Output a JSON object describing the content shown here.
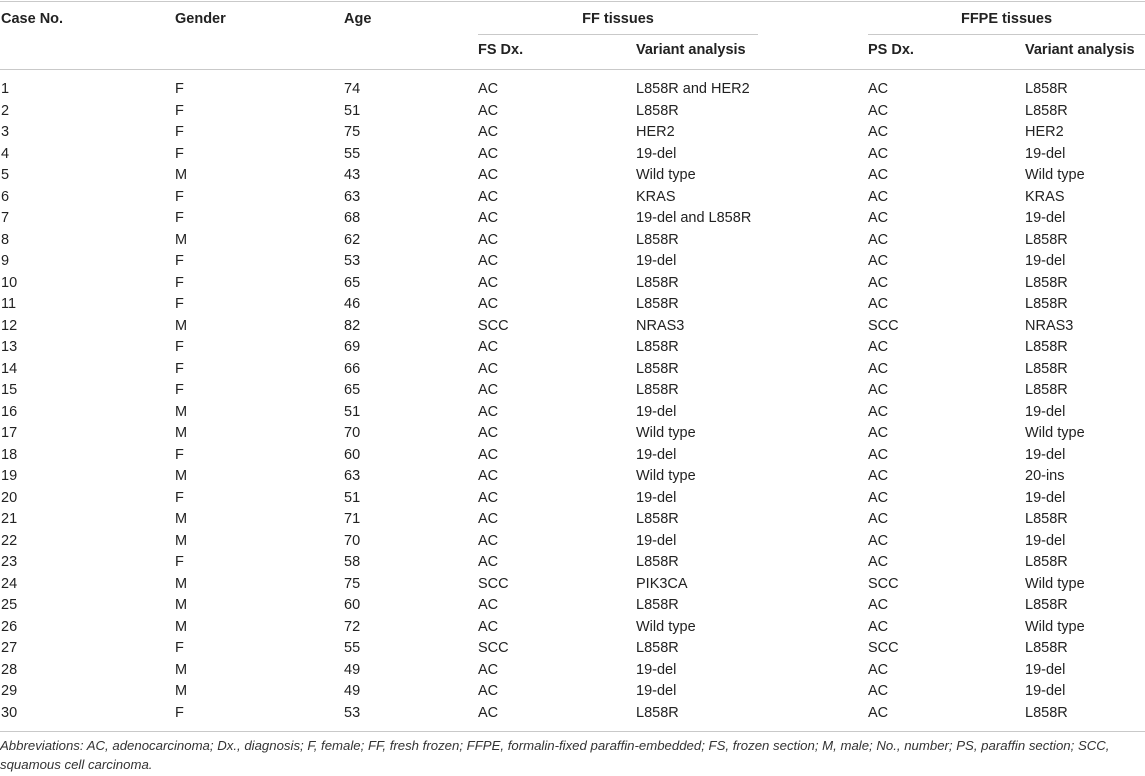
{
  "table": {
    "headers": {
      "case_no": "Case No.",
      "gender": "Gender",
      "age": "Age",
      "ff_group": "FF tissues",
      "ffpe_group": "FFPE tissues",
      "fs_dx": "FS Dx.",
      "ff_variant": "Variant analysis",
      "ps_dx": "PS Dx.",
      "ffpe_variant": "Variant analysis"
    },
    "rows": [
      [
        "1",
        "F",
        "74",
        "AC",
        "L858R and HER2",
        "AC",
        "L858R"
      ],
      [
        "2",
        "F",
        "51",
        "AC",
        "L858R",
        "AC",
        "L858R"
      ],
      [
        "3",
        "F",
        "75",
        "AC",
        "HER2",
        "AC",
        "HER2"
      ],
      [
        "4",
        "F",
        "55",
        "AC",
        "19-del",
        "AC",
        "19-del"
      ],
      [
        "5",
        "M",
        "43",
        "AC",
        "Wild type",
        "AC",
        "Wild type"
      ],
      [
        "6",
        "F",
        "63",
        "AC",
        "KRAS",
        "AC",
        "KRAS"
      ],
      [
        "7",
        "F",
        "68",
        "AC",
        "19-del and L858R",
        "AC",
        "19-del"
      ],
      [
        "8",
        "M",
        "62",
        "AC",
        "L858R",
        "AC",
        "L858R"
      ],
      [
        "9",
        "F",
        "53",
        "AC",
        "19-del",
        "AC",
        "19-del"
      ],
      [
        "10",
        "F",
        "65",
        "AC",
        "L858R",
        "AC",
        "L858R"
      ],
      [
        "11",
        "F",
        "46",
        "AC",
        "L858R",
        "AC",
        "L858R"
      ],
      [
        "12",
        "M",
        "82",
        "SCC",
        "NRAS3",
        "SCC",
        "NRAS3"
      ],
      [
        "13",
        "F",
        "69",
        "AC",
        "L858R",
        "AC",
        "L858R"
      ],
      [
        "14",
        "F",
        "66",
        "AC",
        "L858R",
        "AC",
        "L858R"
      ],
      [
        "15",
        "F",
        "65",
        "AC",
        "L858R",
        "AC",
        "L858R"
      ],
      [
        "16",
        "M",
        "51",
        "AC",
        "19-del",
        "AC",
        "19-del"
      ],
      [
        "17",
        "M",
        "70",
        "AC",
        "Wild type",
        "AC",
        "Wild type"
      ],
      [
        "18",
        "F",
        "60",
        "AC",
        "19-del",
        "AC",
        "19-del"
      ],
      [
        "19",
        "M",
        "63",
        "AC",
        "Wild type",
        "AC",
        "20-ins"
      ],
      [
        "20",
        "F",
        "51",
        "AC",
        "19-del",
        "AC",
        "19-del"
      ],
      [
        "21",
        "M",
        "71",
        "AC",
        "L858R",
        "AC",
        "L858R"
      ],
      [
        "22",
        "M",
        "70",
        "AC",
        "19-del",
        "AC",
        "19-del"
      ],
      [
        "23",
        "F",
        "58",
        "AC",
        "L858R",
        "AC",
        "L858R"
      ],
      [
        "24",
        "M",
        "75",
        "SCC",
        "PIK3CA",
        "SCC",
        "Wild type"
      ],
      [
        "25",
        "M",
        "60",
        "AC",
        "L858R",
        "AC",
        "L858R"
      ],
      [
        "26",
        "M",
        "72",
        "AC",
        "Wild type",
        "AC",
        "Wild type"
      ],
      [
        "27",
        "F",
        "55",
        "SCC",
        "L858R",
        "SCC",
        "L858R"
      ],
      [
        "28",
        "M",
        "49",
        "AC",
        "19-del",
        "AC",
        "19-del"
      ],
      [
        "29",
        "M",
        "49",
        "AC",
        "19-del",
        "AC",
        "19-del"
      ],
      [
        "30",
        "F",
        "53",
        "AC",
        "L858R",
        "AC",
        "L858R"
      ]
    ]
  },
  "footnote": "Abbreviations: AC, adenocarcinoma; Dx., diagnosis; F, female; FF, fresh frozen; FFPE, formalin-fixed paraffin-embedded; FS, frozen section; M, male; No., number; PS, paraffin section; SCC, squamous cell carcinoma."
}
